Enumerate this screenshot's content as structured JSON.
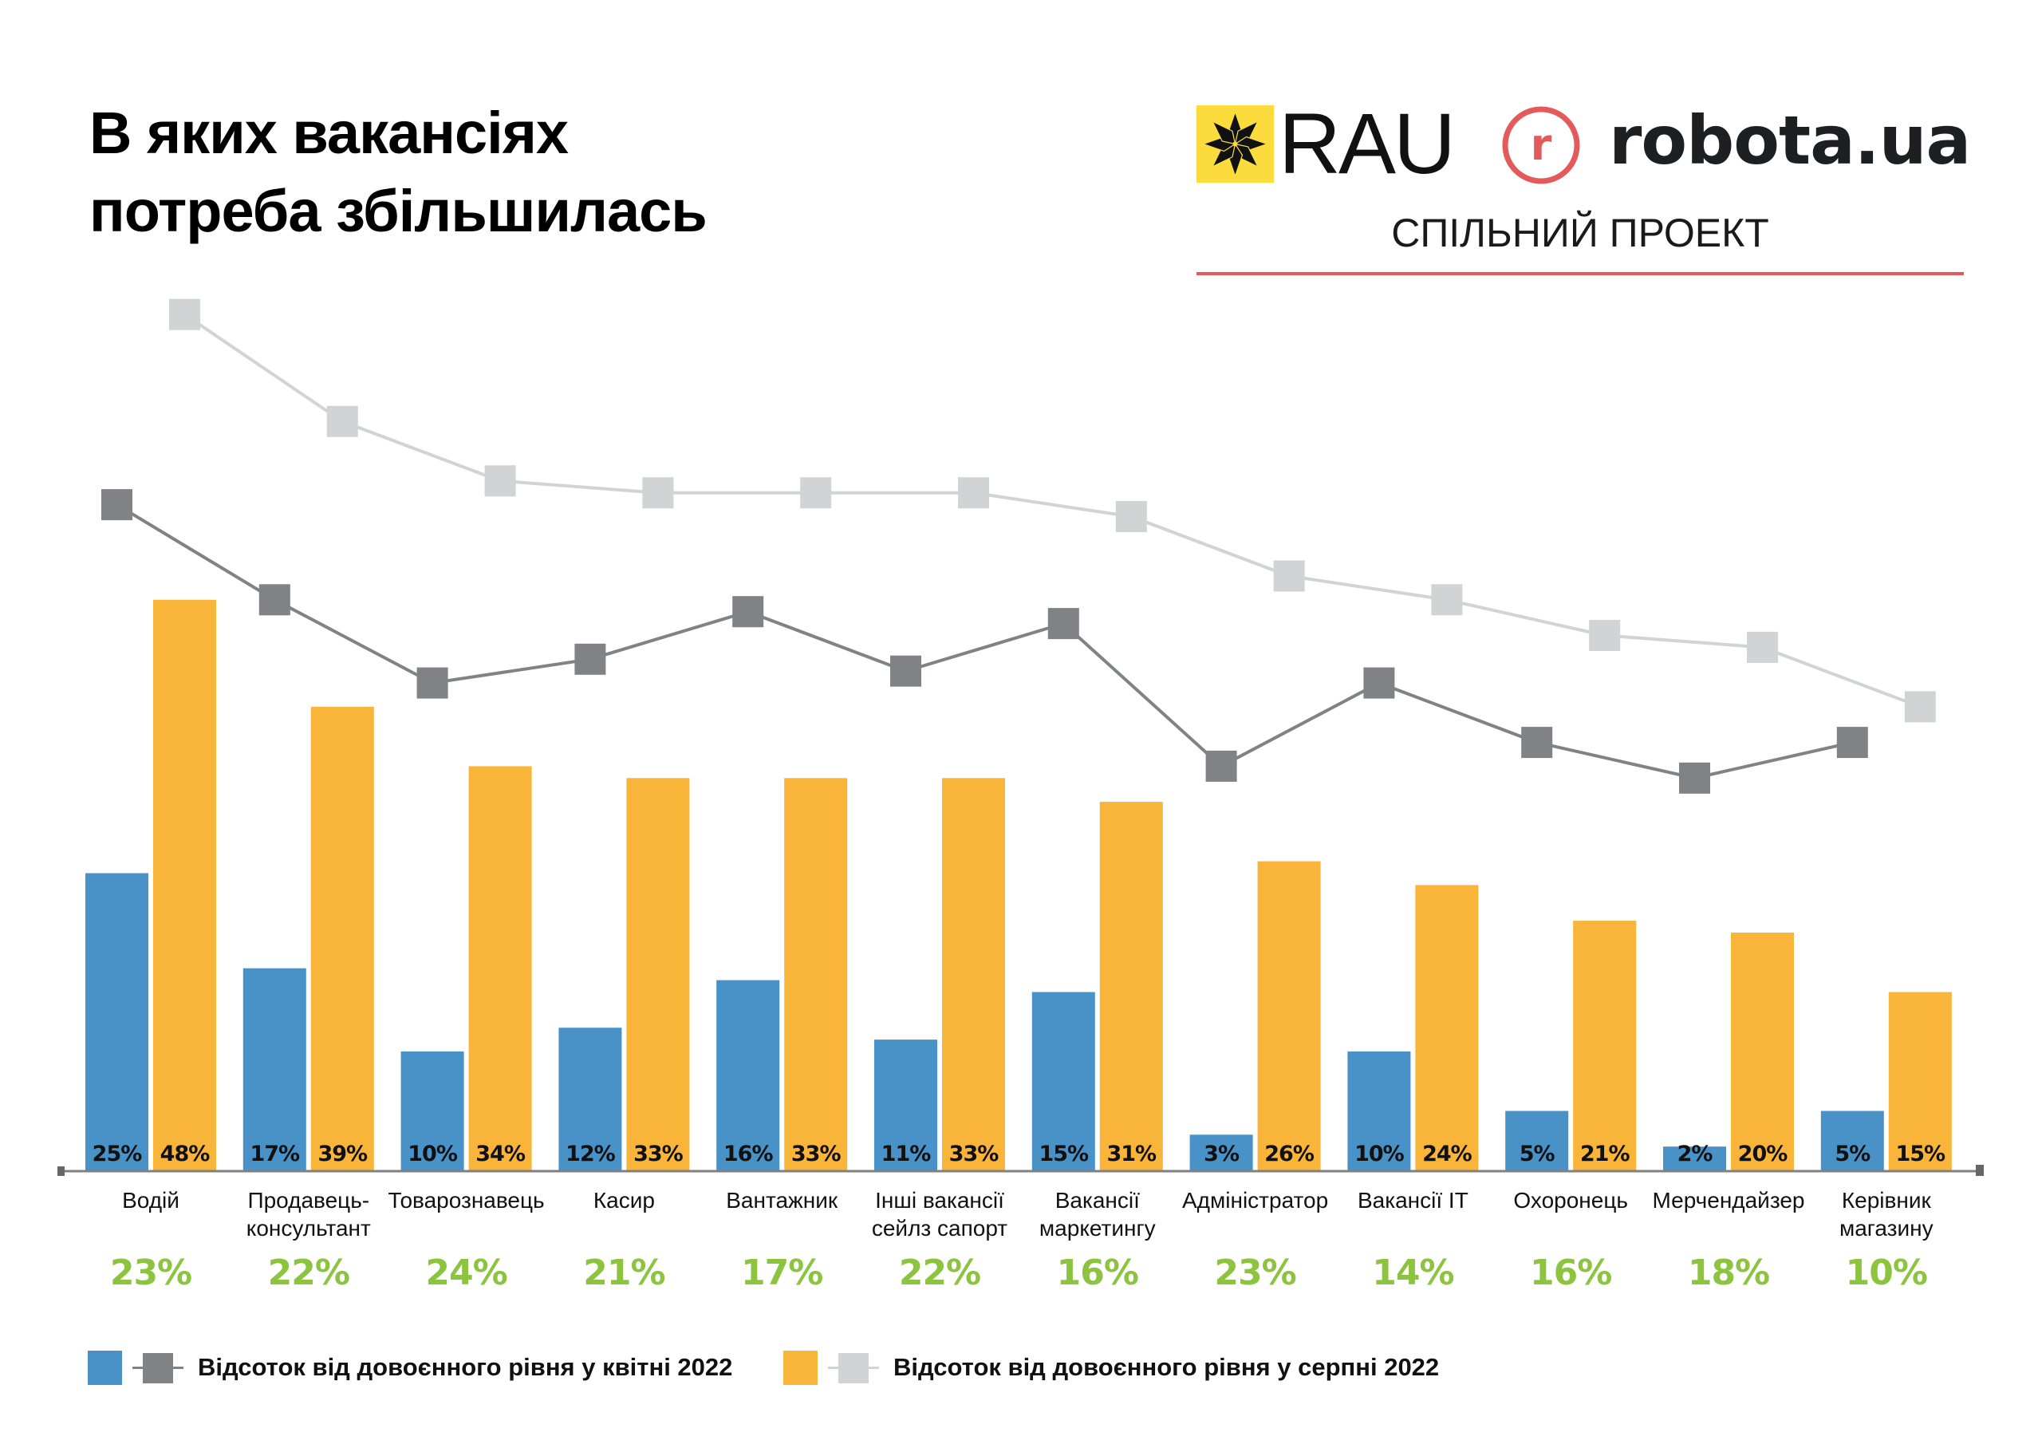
{
  "header": {
    "title_lines": [
      "В яких вакансіях",
      "потреба збільшилась"
    ],
    "logos": {
      "rau": {
        "text": "RAU",
        "icon": "star-ornament-icon",
        "box_color": "#fcdc3c"
      },
      "robota": {
        "badge_letter": "r",
        "text": "robota.ua",
        "accent_color": "#e4595a"
      }
    },
    "subtitle": "СПІЛЬНИЙ ПРОЕКТ"
  },
  "colors": {
    "april_bar": "#4892c8",
    "august_bar": "#f9b43a",
    "april_line": "#818286",
    "august_line": "#d2d3d5",
    "change_text": "#8cc43f",
    "axis": "#808080"
  },
  "chart_data": {
    "type": "bar",
    "title": "В яких вакансіях потреба збільшилась",
    "xlabel": "",
    "ylabel": "",
    "ylim": [
      0,
      52
    ],
    "grid": false,
    "legend_position": "bottom-left",
    "categories": [
      [
        "Водій"
      ],
      [
        "Продавець-",
        "консультант"
      ],
      [
        "Товарознавець"
      ],
      [
        "Касир"
      ],
      [
        "Вантажник"
      ],
      [
        "Інші вакансії",
        "сейлз сапорт"
      ],
      [
        "Вакансії",
        "маркетингу"
      ],
      [
        "Адміністратор"
      ],
      [
        "Вакансії IT"
      ],
      [
        "Охоронець"
      ],
      [
        "Мерчендайзер"
      ],
      [
        "Керівник",
        "магазину"
      ]
    ],
    "series": [
      {
        "name": "Відсоток від довоєнного рівня у квітні 2022",
        "kind": "bar",
        "values": [
          25,
          17,
          10,
          12,
          16,
          11,
          15,
          3,
          10,
          5,
          2,
          5
        ],
        "labels": [
          "25%",
          "17%",
          "10%",
          "12%",
          "16%",
          "11%",
          "15%",
          "3%",
          "10%",
          "5%",
          "2%",
          "5%"
        ]
      },
      {
        "name": "Відсоток від довоєнного рівня у серпні 2022",
        "kind": "bar",
        "values": [
          48,
          39,
          34,
          33,
          33,
          33,
          31,
          26,
          24,
          21,
          20,
          15
        ],
        "labels": [
          "48%",
          "39%",
          "34%",
          "33%",
          "33%",
          "33%",
          "31%",
          "26%",
          "24%",
          "21%",
          "20%",
          "15%"
        ]
      },
      {
        "name": "Відсоток від довоєнного рівня у квітні 2022 (лінія)",
        "kind": "line",
        "note": "unlabeled trend line; values estimated on bar scale",
        "values": [
          56,
          48,
          41,
          43,
          47,
          42,
          46,
          34,
          41,
          36,
          33,
          36
        ]
      },
      {
        "name": "Відсоток від довоєнного рівня у серпні 2022 (лінія)",
        "kind": "line",
        "note": "unlabeled trend line; values estimated on bar scale",
        "values": [
          72,
          63,
          58,
          57,
          57,
          57,
          55,
          50,
          48,
          45,
          44,
          39
        ]
      }
    ],
    "change": [
      "23%",
      "22%",
      "24%",
      "21%",
      "17%",
      "22%",
      "16%",
      "23%",
      "14%",
      "16%",
      "18%",
      "10%"
    ]
  },
  "legend": [
    {
      "label": "Відсоток від довоєнного рівня у квітні 2022"
    },
    {
      "label": "Відсоток від довоєнного рівня у серпні 2022"
    }
  ]
}
